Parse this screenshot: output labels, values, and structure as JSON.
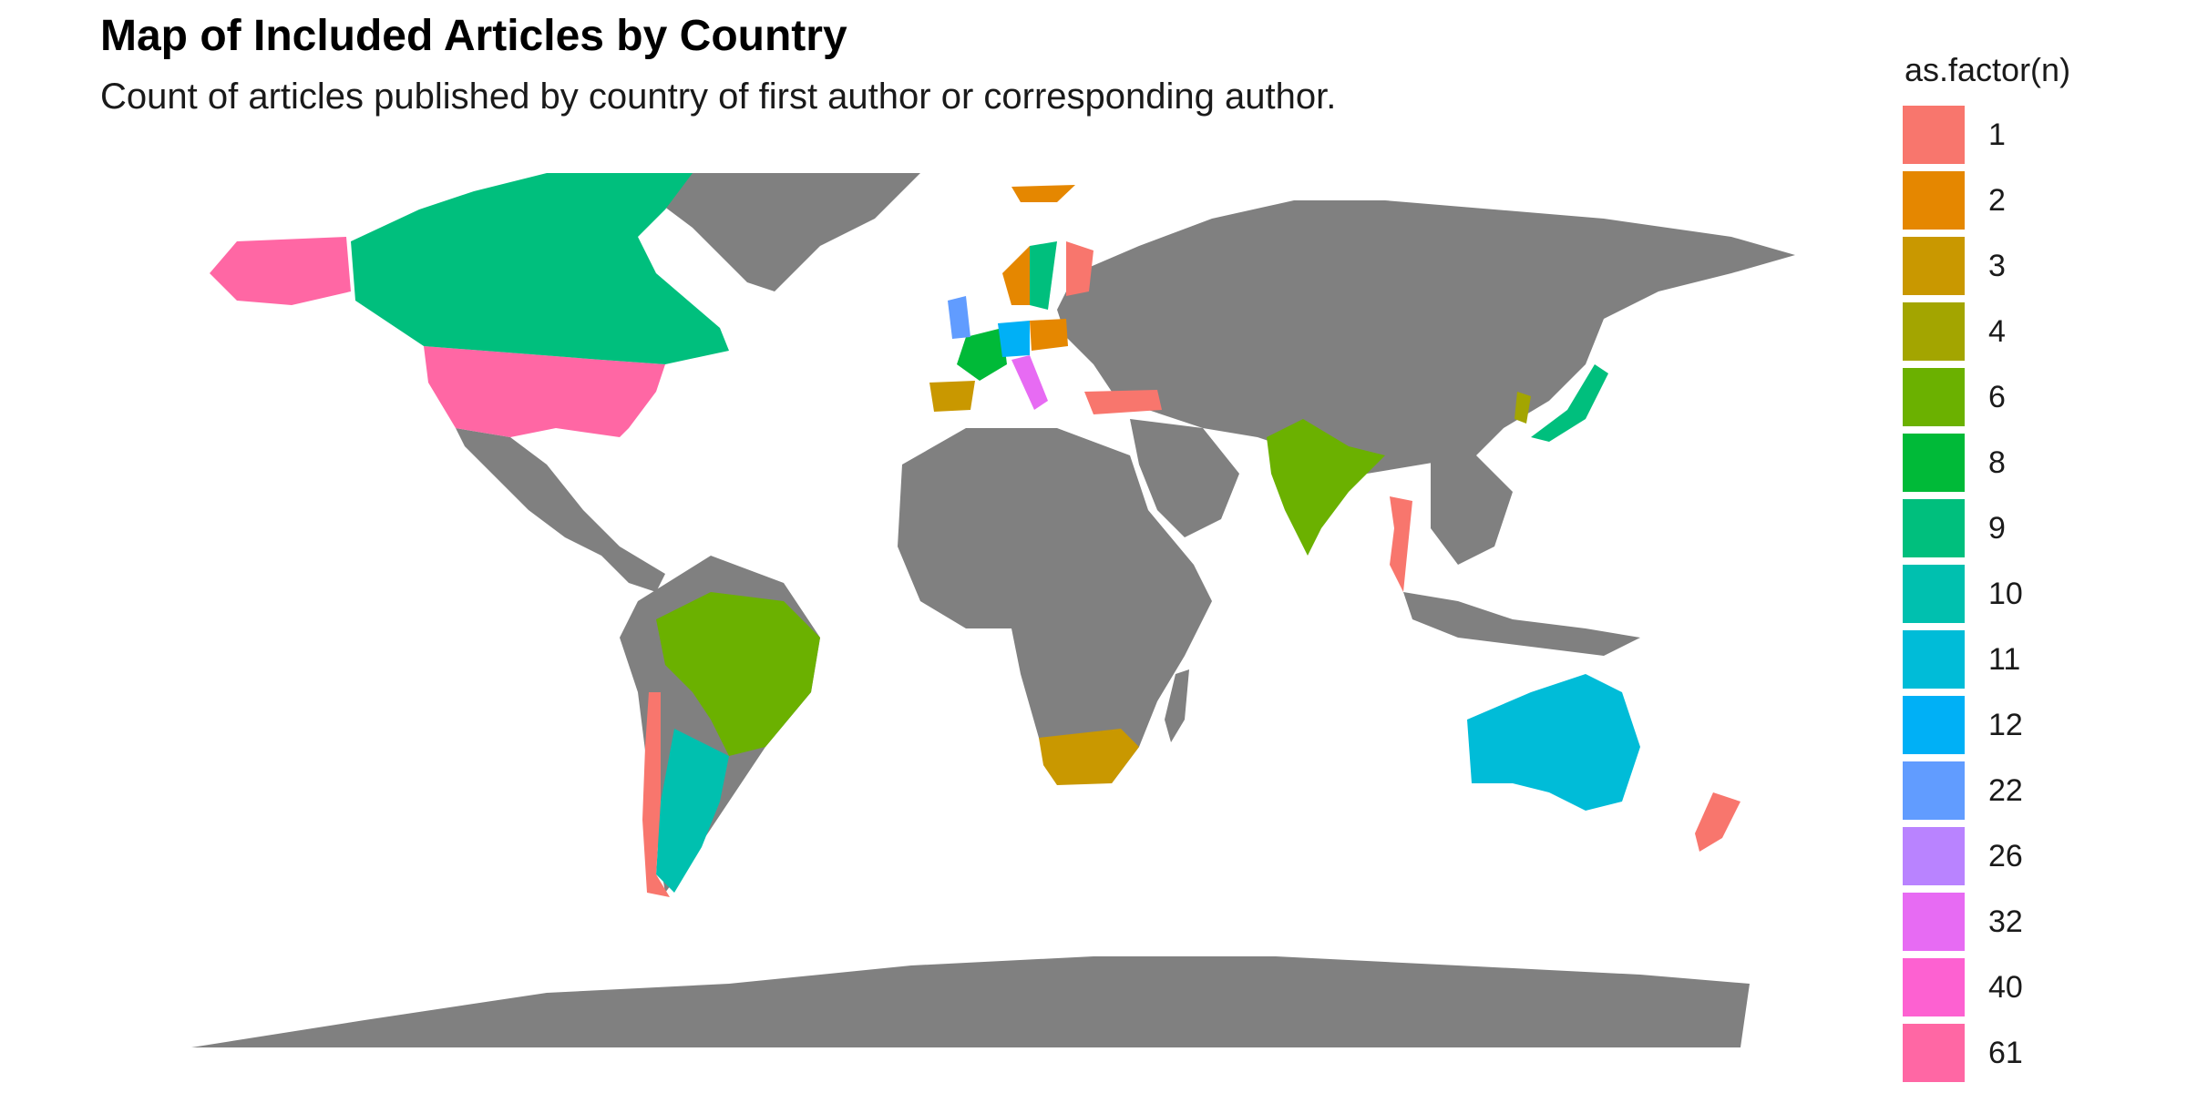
{
  "title": "Map of Included Articles by Country",
  "subtitle": "Count of articles published by country of first author or corresponding author.",
  "legend": {
    "title": "as.factor(n)",
    "items": [
      {
        "label": "1",
        "color": "#F8766D"
      },
      {
        "label": "2",
        "color": "#E58700"
      },
      {
        "label": "3",
        "color": "#C99800"
      },
      {
        "label": "4",
        "color": "#A3A500"
      },
      {
        "label": "6",
        "color": "#6BB100"
      },
      {
        "label": "8",
        "color": "#00BA38"
      },
      {
        "label": "9",
        "color": "#00BF7D"
      },
      {
        "label": "10",
        "color": "#00C0AF"
      },
      {
        "label": "11",
        "color": "#00BCD8"
      },
      {
        "label": "12",
        "color": "#00B0F6"
      },
      {
        "label": "22",
        "color": "#619CFF"
      },
      {
        "label": "26",
        "color": "#B983FF"
      },
      {
        "label": "32",
        "color": "#E76BF3"
      },
      {
        "label": "40",
        "color": "#FD61D1"
      },
      {
        "label": "61",
        "color": "#FF67A4"
      }
    ]
  },
  "map_colors": {
    "no_data": "#808080",
    "background": "#ffffff"
  }
}
